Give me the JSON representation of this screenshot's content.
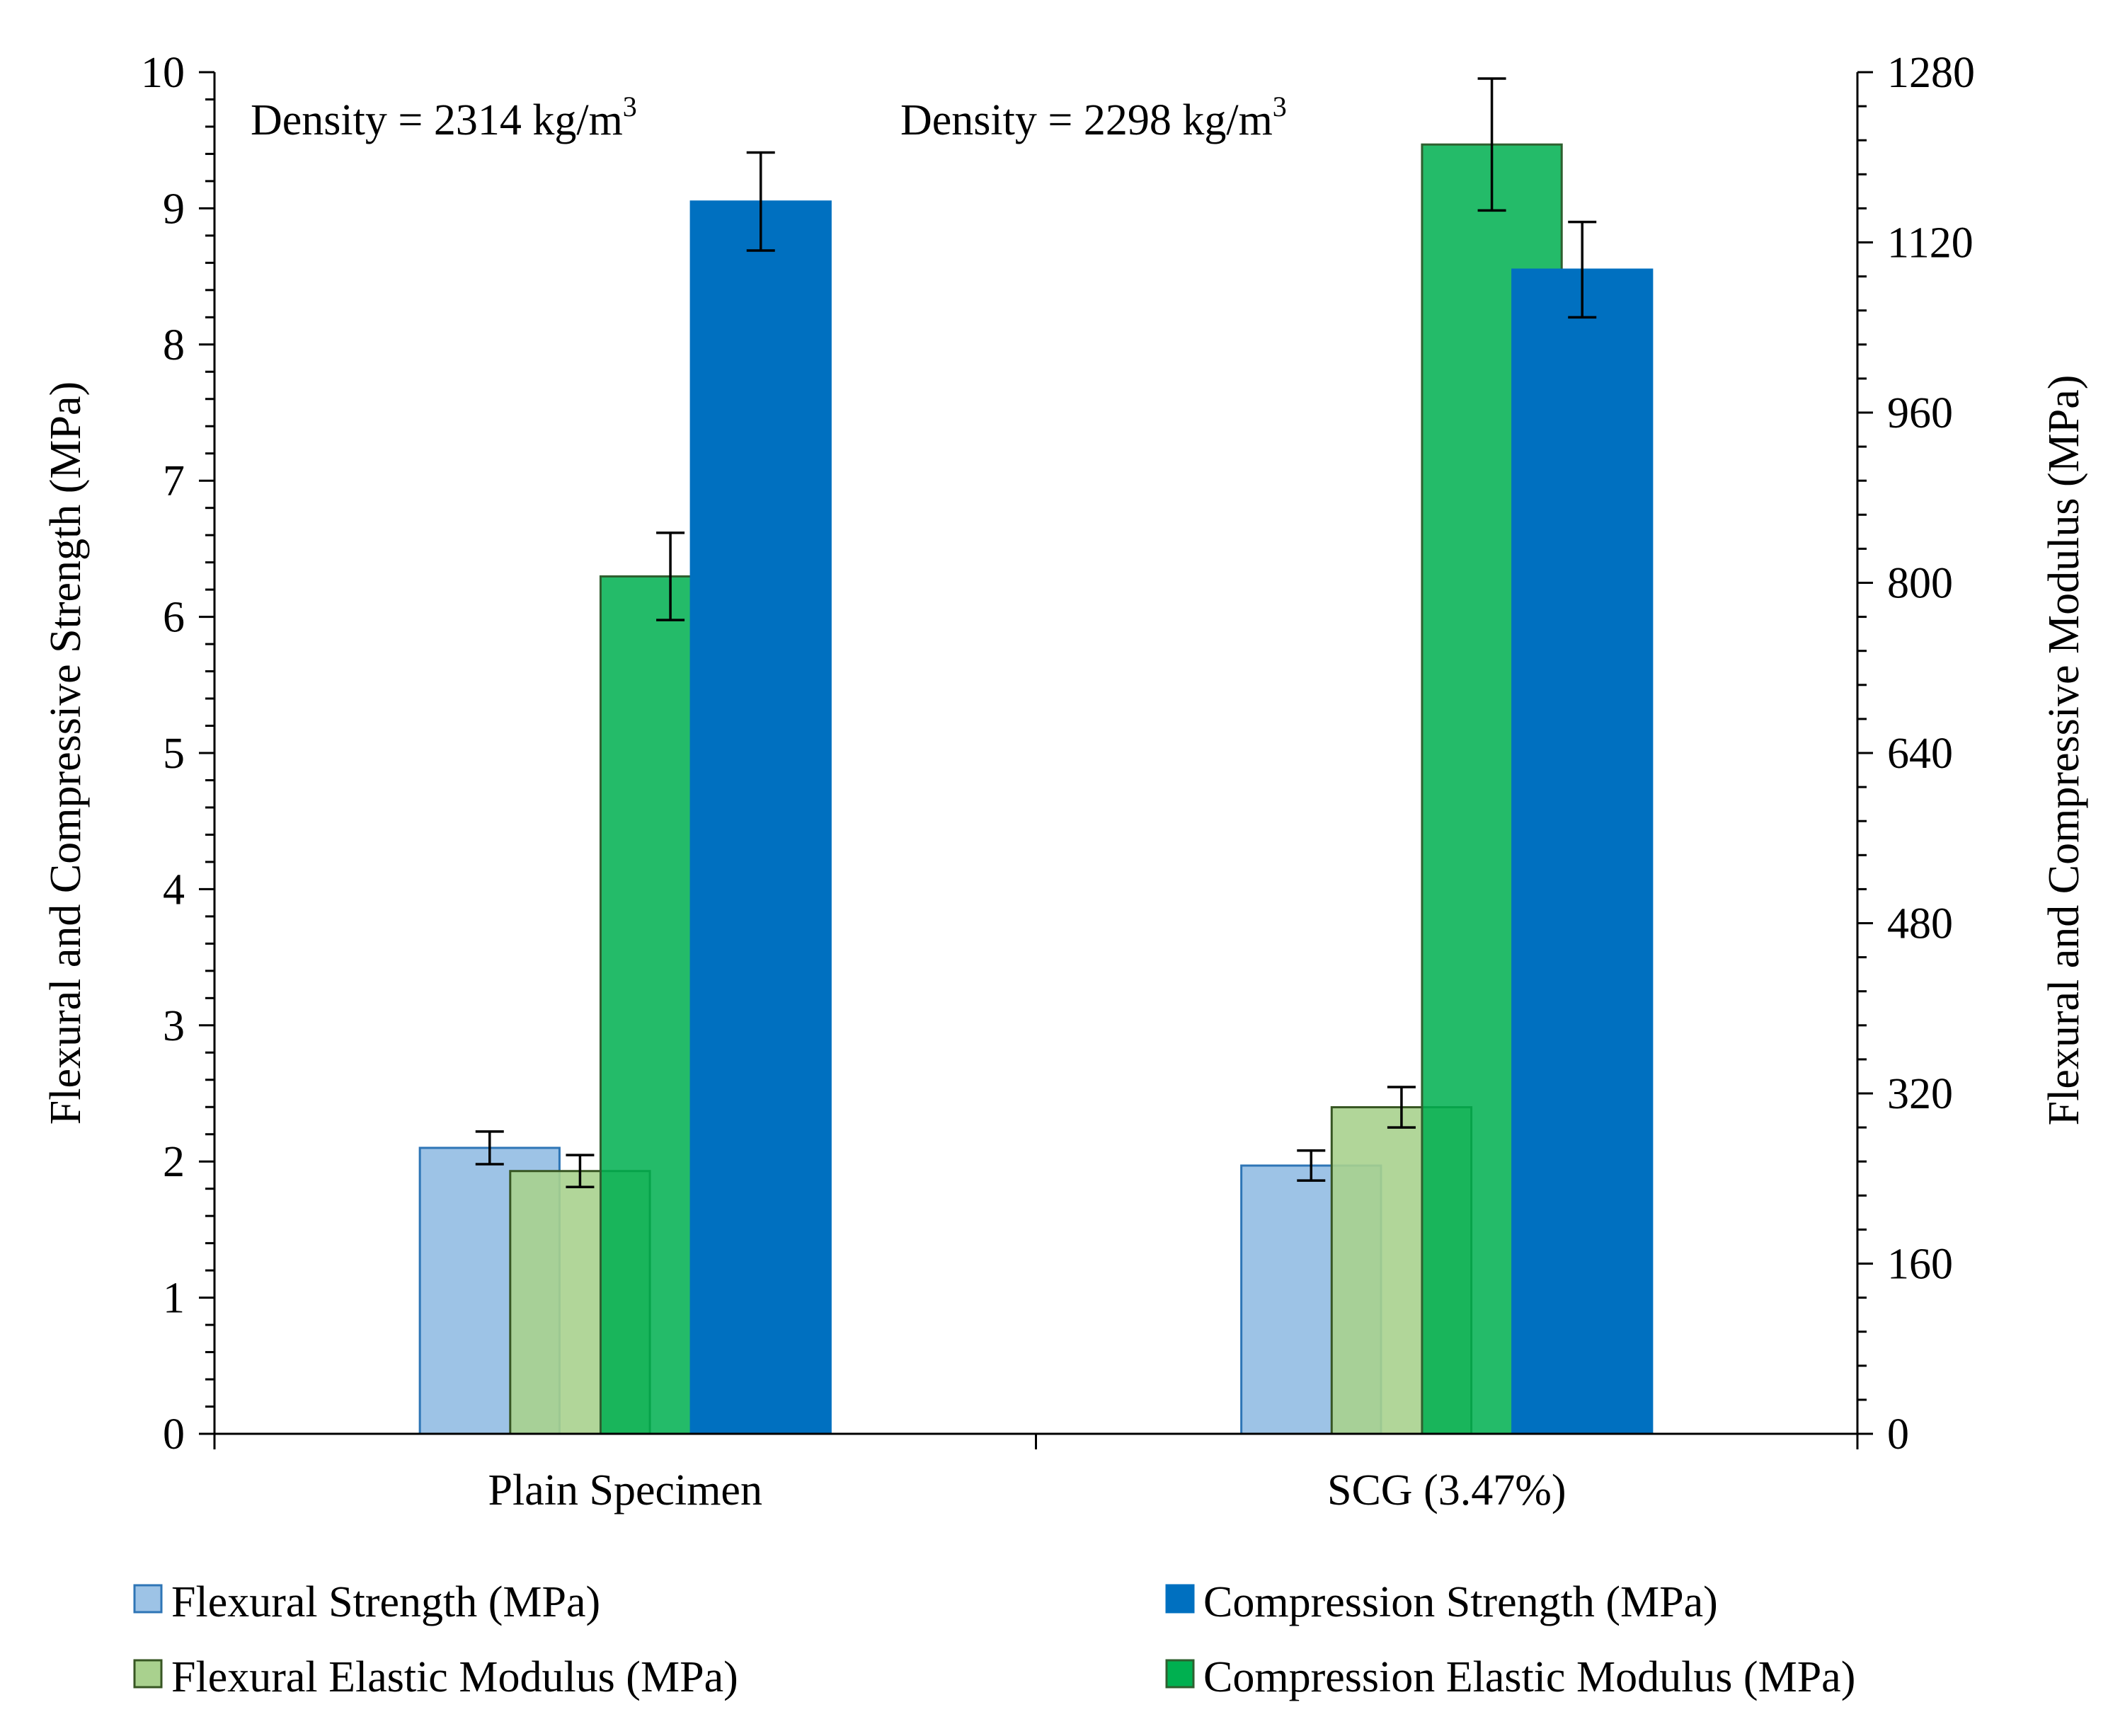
{
  "chart_data": {
    "type": "bar",
    "categories": [
      "Plain Specimen",
      "SCG (3.47%)"
    ],
    "annotations": [
      "Density = 2314 kg/m",
      "Density = 2298 kg/m"
    ],
    "annotation_superscript": "3",
    "y_left": {
      "label": "Flexural and Compressive Strength (MPa)",
      "range": [
        0,
        10
      ],
      "major_step": 1,
      "minor_step": 0.2
    },
    "y_right": {
      "label": "Flexural and Compressive Modulus (MPa)",
      "range": [
        0,
        1280
      ],
      "major_step": 160,
      "minor_step": 32
    },
    "series": [
      {
        "name": "Flexural Strength (MPa)",
        "axis": "left",
        "values": [
          2.1,
          1.97
        ],
        "errors": [
          0.12,
          0.11
        ],
        "color": "#9DC3E6",
        "border": "#2E75B6",
        "opacity": 1.0
      },
      {
        "name": "Flexural Elastic Modulus (MPa)",
        "axis": "right",
        "values": [
          247,
          307
        ],
        "errors": [
          15,
          19
        ],
        "color": "#A9D18E",
        "border": "#375623",
        "opacity": 0.9
      },
      {
        "name": "Compression Elastic Modulus (MPa)",
        "axis": "right",
        "values": [
          806,
          1212
        ],
        "errors": [
          41,
          62
        ],
        "color": "#00B050",
        "border": "#2F5F2F",
        "opacity": 0.86
      },
      {
        "name": "Compression Strength (MPa)",
        "axis": "left",
        "values": [
          9.05,
          8.55
        ],
        "errors": [
          0.36,
          0.35
        ],
        "color": "#0070C0",
        "border": "#0070C0",
        "opacity": 1.0
      }
    ],
    "legend": {
      "position": "bottom",
      "items": [
        "Flexural Strength (MPa)",
        "Compression Strength (MPa)",
        "Flexural Elastic Modulus (MPa)",
        "Compression Elastic Modulus (MPa)"
      ]
    },
    "grid": false
  }
}
